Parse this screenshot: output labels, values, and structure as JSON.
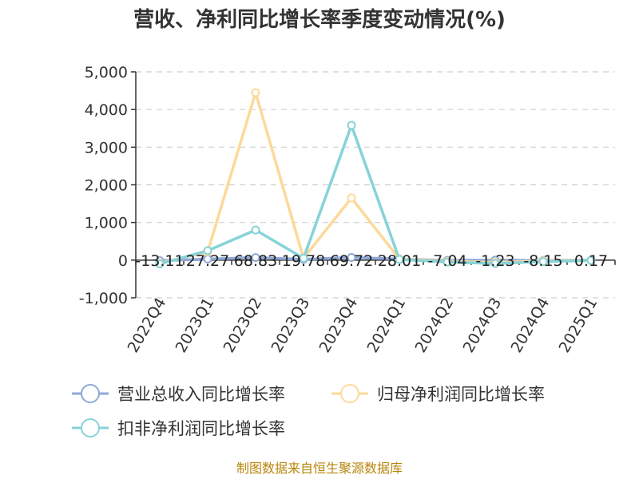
{
  "chart_data": {
    "type": "line",
    "title": "营收、净利同比增长率季度变动情况(%)",
    "categories": [
      "2022Q4",
      "2023Q1",
      "2023Q2",
      "2023Q3",
      "2023Q4",
      "2024Q1",
      "2024Q2",
      "2024Q3",
      "2024Q4",
      "2025Q1"
    ],
    "series": [
      {
        "name": "营业总收入同比增长率",
        "color": "#8fa8d8",
        "values": [
          -13.11,
          27.27,
          68.83,
          19.78,
          69.72,
          28.01,
          -7.04,
          -1.23,
          -8.15,
          0.17
        ]
      },
      {
        "name": "归母净利润同比增长率",
        "color": "#fcd99b",
        "values": [
          -80,
          220,
          4450,
          50,
          1650,
          30,
          -30,
          -60,
          -20,
          -10
        ]
      },
      {
        "name": "扣非净利润同比增长率",
        "color": "#86d3d8",
        "values": [
          -100,
          250,
          800,
          50,
          3580,
          20,
          -50,
          -90,
          -40,
          -10
        ]
      }
    ],
    "data_labels": [
      "-13.11",
      "27.27",
      "68.83",
      "19.78",
      "69.72",
      "28.01",
      "-7.04",
      "-1.23",
      "-8.15",
      "0.17"
    ],
    "y_ticks": [
      -1000,
      0,
      1000,
      2000,
      3000,
      4000,
      5000
    ],
    "ylim": [
      -1000,
      5000
    ],
    "grid": true,
    "legend_position": "bottom"
  },
  "source_text": "制图数据来自恒生聚源数据库"
}
